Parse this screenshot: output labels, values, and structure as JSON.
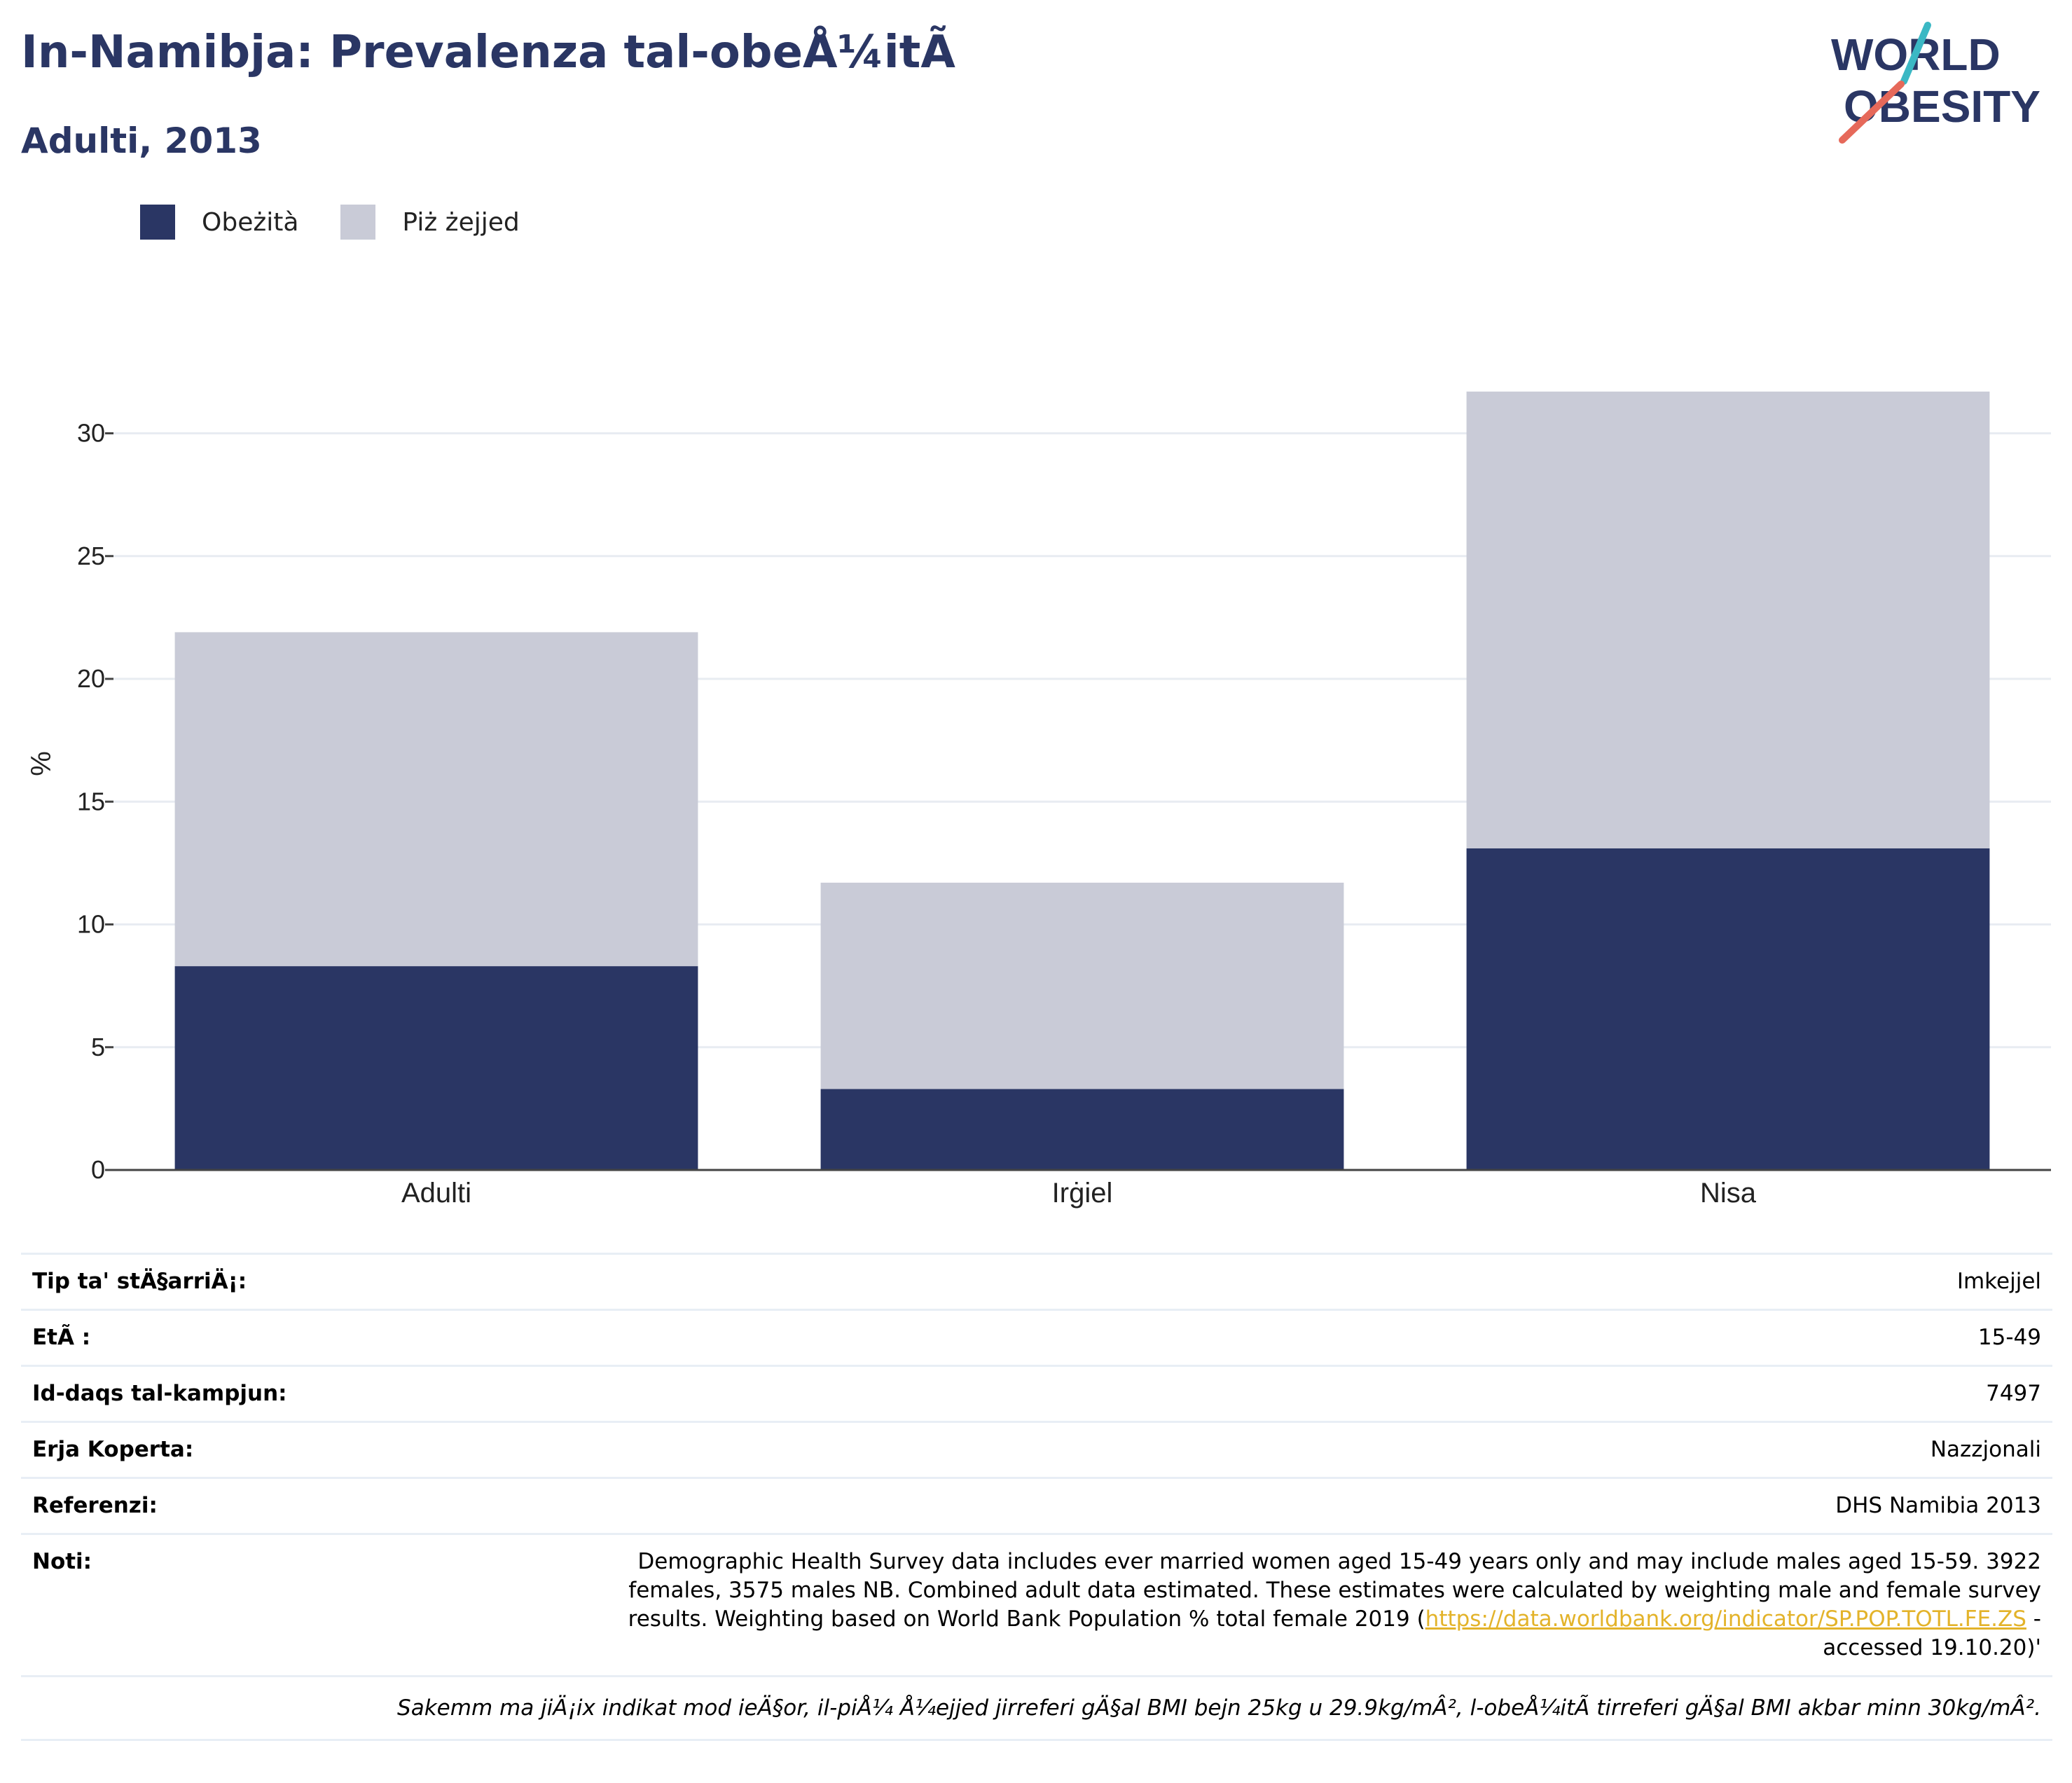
{
  "header": {
    "title": "In-Namibja: Prevalenza tal-obeÅ¼itÃ",
    "subtitle": "Adulti, 2013"
  },
  "logo": {
    "line1": "WORLD",
    "line2": "OBESITY"
  },
  "legend": {
    "obese_label": "Obeżità",
    "overweight_label": "Piż żejjed"
  },
  "colors": {
    "obese": "#2a3664",
    "overweight": "#c9cbd7",
    "title": "#2a3664",
    "logo_teal": "#3bb8c4",
    "logo_red": "#e6695a",
    "link": "#e3b32a",
    "grid": "#e8ecf2"
  },
  "chart_data": {
    "type": "bar",
    "stacked": true,
    "categories": [
      "Adulti",
      "Irġiel",
      "Nisa"
    ],
    "series": [
      {
        "name": "Obeżità",
        "values": [
          8.3,
          3.3,
          13.1
        ]
      },
      {
        "name": "Piż żejjed",
        "values": [
          13.6,
          8.4,
          18.6
        ]
      }
    ],
    "ylabel": "%",
    "ylim": [
      0,
      32
    ],
    "yticks": [
      0,
      5,
      10,
      15,
      20,
      25,
      30
    ],
    "grid": true,
    "legend_position": "top-left"
  },
  "info": {
    "rows": [
      {
        "key": "Tip ta' stÄ§arriÄ¡:",
        "value": "Imkejjel"
      },
      {
        "key": "EtÃ :",
        "value": "15-49"
      },
      {
        "key": "Id-daqs tal-kampjun:",
        "value": "7497"
      },
      {
        "key": "Erja Koperta:",
        "value": "Nazzjonali"
      },
      {
        "key": "Referenzi:",
        "value": "DHS Namibia 2013"
      }
    ],
    "notes_key": "Noti:",
    "notes_text_before": "Demographic Health Survey data includes ever married women aged 15-49 years only and may include males aged 15-59. 3922 females, 3575 males NB. Combined adult data estimated. These estimates were calculated by weighting male and female survey results. Weighting based on World Bank Population % total female 2019 (",
    "notes_link": "https://data.worldbank.org/indicator/SP.POP.TOTL.FE.ZS",
    "notes_text_after": " - accessed 19.10.20)'",
    "footnote": "Sakemm ma jiÄ¡ix indikat mod ieÄ§or, il-piÅ¼ Å¼ejjed jirreferi gÄ§al BMI bejn 25kg u 29.9kg/mÂ², l-obeÅ¼itÃ  tirreferi gÄ§al BMI akbar minn 30kg/mÂ²."
  }
}
